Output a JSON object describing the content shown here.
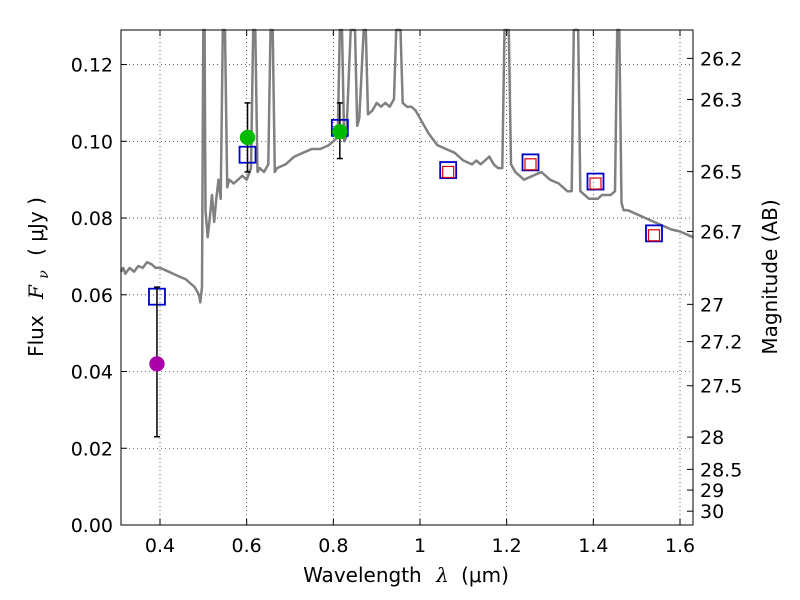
{
  "chart_data": {
    "type": "scatter",
    "xlabel_text": "Wavelength",
    "xlabel_symbol": "λ",
    "xlabel_unit": "(μm)",
    "ylabel_text": "Flux",
    "ylabel_symbol": "F",
    "ylabel_subscript": "ν",
    "ylabel_unit": "( μJy )",
    "y2label": "Magnitude (AB)",
    "xlim": [
      0.31,
      1.63
    ],
    "ylim": [
      0.0,
      0.129
    ],
    "grid": true,
    "x_ticks": [
      {
        "value": 0.4,
        "label": "0.4"
      },
      {
        "value": 0.6,
        "label": "0.6"
      },
      {
        "value": 0.8,
        "label": "0.8"
      },
      {
        "value": 1.0,
        "label": "1"
      },
      {
        "value": 1.2,
        "label": "1.2"
      },
      {
        "value": 1.4,
        "label": "1.4"
      },
      {
        "value": 1.6,
        "label": "1.6"
      }
    ],
    "y_ticks": [
      {
        "value": 0.0,
        "label": "0.00"
      },
      {
        "value": 0.02,
        "label": "0.02"
      },
      {
        "value": 0.04,
        "label": "0.04"
      },
      {
        "value": 0.06,
        "label": "0.06"
      },
      {
        "value": 0.08,
        "label": "0.08"
      },
      {
        "value": 0.1,
        "label": "0.10"
      },
      {
        "value": 0.12,
        "label": "0.12"
      }
    ],
    "y2_ticks": [
      {
        "flux": 0.1216,
        "label": "26.2"
      },
      {
        "flux": 0.1109,
        "label": "26.3"
      },
      {
        "flux": 0.0921,
        "label": "26.5"
      },
      {
        "flux": 0.0765,
        "label": "26.7"
      },
      {
        "flux": 0.0575,
        "label": "27"
      },
      {
        "flux": 0.0478,
        "label": "27.2"
      },
      {
        "flux": 0.0363,
        "label": "27.5"
      },
      {
        "flux": 0.0229,
        "label": "28"
      },
      {
        "flux": 0.0145,
        "label": "28.5"
      },
      {
        "flux": 0.0091,
        "label": "29"
      },
      {
        "flux": 0.0036,
        "label": "30"
      }
    ],
    "series": [
      {
        "name": "model spectrum",
        "kind": "line",
        "color": "#808080",
        "points": [
          [
            0.31,
            0.066
          ],
          [
            0.315,
            0.067
          ],
          [
            0.32,
            0.0655
          ],
          [
            0.33,
            0.067
          ],
          [
            0.34,
            0.066
          ],
          [
            0.35,
            0.0675
          ],
          [
            0.36,
            0.067
          ],
          [
            0.37,
            0.0685
          ],
          [
            0.38,
            0.068
          ],
          [
            0.39,
            0.067
          ],
          [
            0.4,
            0.067
          ],
          [
            0.42,
            0.066
          ],
          [
            0.44,
            0.065
          ],
          [
            0.46,
            0.064
          ],
          [
            0.47,
            0.063
          ],
          [
            0.48,
            0.062
          ],
          [
            0.49,
            0.06
          ],
          [
            0.493,
            0.058
          ],
          [
            0.497,
            0.062
          ],
          [
            0.5,
            0.129
          ],
          [
            0.503,
            0.129
          ],
          [
            0.505,
            0.082
          ],
          [
            0.51,
            0.075
          ],
          [
            0.515,
            0.08
          ],
          [
            0.52,
            0.086
          ],
          [
            0.525,
            0.079
          ],
          [
            0.53,
            0.085
          ],
          [
            0.535,
            0.09
          ],
          [
            0.54,
            0.085
          ],
          [
            0.545,
            0.129
          ],
          [
            0.55,
            0.129
          ],
          [
            0.555,
            0.088
          ],
          [
            0.56,
            0.09
          ],
          [
            0.57,
            0.089
          ],
          [
            0.58,
            0.09
          ],
          [
            0.59,
            0.091
          ],
          [
            0.6,
            0.09
          ],
          [
            0.61,
            0.093
          ],
          [
            0.615,
            0.129
          ],
          [
            0.62,
            0.129
          ],
          [
            0.625,
            0.092
          ],
          [
            0.63,
            0.093
          ],
          [
            0.64,
            0.092
          ],
          [
            0.65,
            0.094
          ],
          [
            0.655,
            0.129
          ],
          [
            0.66,
            0.129
          ],
          [
            0.665,
            0.092
          ],
          [
            0.67,
            0.093
          ],
          [
            0.69,
            0.094
          ],
          [
            0.71,
            0.096
          ],
          [
            0.73,
            0.097
          ],
          [
            0.75,
            0.098
          ],
          [
            0.77,
            0.098
          ],
          [
            0.79,
            0.099
          ],
          [
            0.8,
            0.1
          ],
          [
            0.81,
            0.101
          ],
          [
            0.815,
            0.129
          ],
          [
            0.82,
            0.129
          ],
          [
            0.825,
            0.1
          ],
          [
            0.83,
            0.101
          ],
          [
            0.84,
            0.129
          ],
          [
            0.85,
            0.129
          ],
          [
            0.855,
            0.104
          ],
          [
            0.86,
            0.106
          ],
          [
            0.87,
            0.129
          ],
          [
            0.875,
            0.129
          ],
          [
            0.88,
            0.107
          ],
          [
            0.89,
            0.108
          ],
          [
            0.9,
            0.11
          ],
          [
            0.91,
            0.109
          ],
          [
            0.92,
            0.11
          ],
          [
            0.93,
            0.109
          ],
          [
            0.94,
            0.111
          ],
          [
            0.945,
            0.129
          ],
          [
            0.955,
            0.129
          ],
          [
            0.96,
            0.11
          ],
          [
            0.97,
            0.109
          ],
          [
            0.98,
            0.109
          ],
          [
            0.99,
            0.108
          ],
          [
            1.0,
            0.106
          ],
          [
            1.02,
            0.102
          ],
          [
            1.04,
            0.099
          ],
          [
            1.06,
            0.098
          ],
          [
            1.08,
            0.097
          ],
          [
            1.1,
            0.095
          ],
          [
            1.12,
            0.094
          ],
          [
            1.13,
            0.095
          ],
          [
            1.14,
            0.094
          ],
          [
            1.15,
            0.095
          ],
          [
            1.16,
            0.096
          ],
          [
            1.17,
            0.094
          ],
          [
            1.18,
            0.093
          ],
          [
            1.19,
            0.093
          ],
          [
            1.195,
            0.129
          ],
          [
            1.205,
            0.129
          ],
          [
            1.21,
            0.094
          ],
          [
            1.22,
            0.092
          ],
          [
            1.23,
            0.091
          ],
          [
            1.24,
            0.09
          ],
          [
            1.26,
            0.091
          ],
          [
            1.28,
            0.092
          ],
          [
            1.3,
            0.09
          ],
          [
            1.32,
            0.089
          ],
          [
            1.33,
            0.088
          ],
          [
            1.34,
            0.087
          ],
          [
            1.35,
            0.087
          ],
          [
            1.355,
            0.129
          ],
          [
            1.365,
            0.129
          ],
          [
            1.37,
            0.087
          ],
          [
            1.38,
            0.086
          ],
          [
            1.39,
            0.085
          ],
          [
            1.4,
            0.085
          ],
          [
            1.41,
            0.085
          ],
          [
            1.42,
            0.086
          ],
          [
            1.44,
            0.086
          ],
          [
            1.45,
            0.087
          ],
          [
            1.455,
            0.129
          ],
          [
            1.46,
            0.129
          ],
          [
            1.465,
            0.084
          ],
          [
            1.47,
            0.082
          ],
          [
            1.48,
            0.082
          ],
          [
            1.5,
            0.081
          ],
          [
            1.52,
            0.08
          ],
          [
            1.54,
            0.079
          ],
          [
            1.56,
            0.078
          ],
          [
            1.58,
            0.077
          ],
          [
            1.6,
            0.0765
          ],
          [
            1.62,
            0.0755
          ],
          [
            1.63,
            0.075
          ]
        ]
      },
      {
        "name": "model photometry (blue squares)",
        "kind": "marker",
        "marker": "square",
        "color": "#0000cc",
        "points": [
          [
            0.393,
            0.0595
          ],
          [
            0.602,
            0.0965
          ],
          [
            0.815,
            0.1035
          ],
          [
            1.065,
            0.0925
          ],
          [
            1.255,
            0.0945
          ],
          [
            1.405,
            0.0895
          ],
          [
            1.54,
            0.076
          ]
        ]
      },
      {
        "name": "red squares",
        "kind": "marker",
        "marker": "square-small",
        "color": "#dd0000",
        "points": [
          [
            1.065,
            0.092
          ],
          [
            1.255,
            0.094
          ],
          [
            1.405,
            0.089
          ],
          [
            1.54,
            0.0755
          ]
        ]
      },
      {
        "name": "observed (green)",
        "kind": "marker",
        "marker": "circle",
        "color": "#00bb00",
        "points": [
          [
            0.602,
            0.101
          ],
          [
            0.815,
            0.1025
          ]
        ],
        "errors": [
          [
            0.092,
            0.11
          ],
          [
            0.0955,
            0.11
          ]
        ]
      },
      {
        "name": "observed (purple)",
        "kind": "marker",
        "marker": "circle",
        "color": "#aa00aa",
        "points": [
          [
            0.393,
            0.042
          ]
        ],
        "errors": [
          [
            0.023,
            0.062
          ]
        ]
      }
    ]
  }
}
